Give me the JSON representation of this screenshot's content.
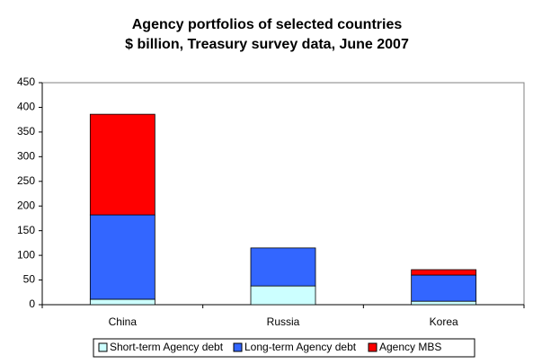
{
  "chart_data": {
    "type": "stacked-bar",
    "title": "Agency portfolios of selected countries",
    "subtitle": "$ billion, Treasury survey data, June 2007",
    "categories": [
      "China",
      "Russia",
      "Korea"
    ],
    "series": [
      {
        "name": "Short-term Agency debt",
        "color": "#ccffff",
        "values": [
          11,
          38,
          7
        ]
      },
      {
        "name": "Long-term Agency debt",
        "color": "#3366ff",
        "values": [
          171,
          77,
          53
        ]
      },
      {
        "name": "Agency MBS",
        "color": "#ff0000",
        "values": [
          204,
          0,
          11
        ]
      }
    ],
    "ylim": [
      0,
      450
    ],
    "yticks": [
      0,
      50,
      100,
      150,
      200,
      250,
      300,
      350,
      400,
      450
    ],
    "grid": false,
    "legend": "bottom"
  }
}
